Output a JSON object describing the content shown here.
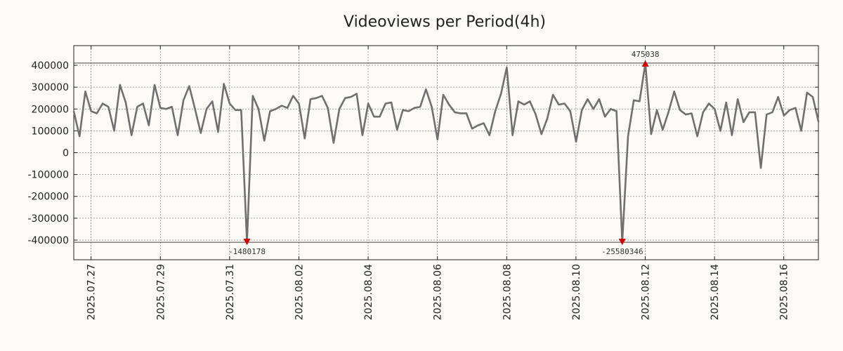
{
  "chart_data": {
    "type": "line",
    "title": "Videoviews per Period(4h)",
    "xlabel": "",
    "ylabel": "",
    "x_ticks": [
      "2025.07.27",
      "2025.07.29",
      "2025.07.31",
      "2025.08.02",
      "2025.08.04",
      "2025.08.06",
      "2025.08.08",
      "2025.08.10",
      "2025.08.12",
      "2025.08.14",
      "2025.08.16"
    ],
    "x_tick_positions_days": [
      0.5,
      2.5,
      4.5,
      6.5,
      8.5,
      10.5,
      12.5,
      14.5,
      16.5,
      18.5,
      20.5
    ],
    "ylim": [
      -490000,
      490000
    ],
    "xlim_days": [
      0,
      21.5
    ],
    "y_ticks": [
      400000,
      300000,
      200000,
      100000,
      0,
      -100000,
      -200000,
      -300000,
      -400000
    ],
    "y_tick_labels": [
      "400000",
      "300000",
      "200000",
      "100000",
      "0",
      "-100000",
      "-200000",
      "-300000",
      "-400000"
    ],
    "clip_lines": [
      410000,
      -410000
    ],
    "series": [
      {
        "name": "Videoviews",
        "color": "#707070",
        "x_start_day": 0,
        "step_day": 0.1667,
        "values": [
          190000,
          75000,
          280000,
          190000,
          180000,
          225000,
          210000,
          100000,
          310000,
          230000,
          80000,
          210000,
          225000,
          125000,
          310000,
          205000,
          200000,
          210000,
          80000,
          240000,
          305000,
          200000,
          90000,
          200000,
          235000,
          95000,
          315000,
          225000,
          195000,
          195000,
          -410000,
          260000,
          200000,
          55000,
          190000,
          200000,
          215000,
          205000,
          260000,
          225000,
          65000,
          245000,
          250000,
          260000,
          205000,
          45000,
          200000,
          250000,
          255000,
          270000,
          80000,
          225000,
          165000,
          165000,
          225000,
          230000,
          105000,
          195000,
          190000,
          205000,
          210000,
          290000,
          210000,
          60000,
          265000,
          220000,
          185000,
          180000,
          180000,
          110000,
          125000,
          135000,
          80000,
          190000,
          270000,
          390000,
          80000,
          235000,
          220000,
          235000,
          175000,
          85000,
          155000,
          265000,
          220000,
          225000,
          190000,
          50000,
          195000,
          245000,
          200000,
          245000,
          165000,
          200000,
          190000,
          -410000,
          75000,
          240000,
          235000,
          410000,
          85000,
          195000,
          105000,
          185000,
          280000,
          195000,
          175000,
          180000,
          75000,
          185000,
          225000,
          200000,
          100000,
          230000,
          80000,
          245000,
          140000,
          185000,
          185000,
          -70000,
          175000,
          185000,
          255000,
          170000,
          195000,
          205000,
          100000,
          275000,
          255000,
          140000
        ]
      }
    ],
    "annotations": [
      {
        "label": "475038",
        "index": 99,
        "type": "max",
        "color": "#d40000"
      },
      {
        "label": "-1480178",
        "index": 30,
        "type": "min",
        "color": "#d40000"
      },
      {
        "label": "-25580346",
        "index": 95,
        "type": "min",
        "color": "#d40000"
      }
    ],
    "grid": true
  }
}
